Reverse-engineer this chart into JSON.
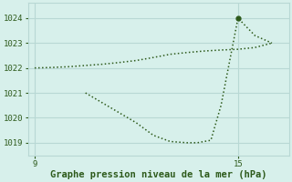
{
  "line1_x": [
    9.0,
    9.5,
    10.0,
    10.5,
    11.0,
    11.5,
    12.0,
    12.5,
    13.0,
    13.5,
    14.0,
    14.5,
    15.0,
    15.5,
    16.0
  ],
  "line1_y": [
    1022.0,
    1022.02,
    1022.05,
    1022.1,
    1022.15,
    1022.22,
    1022.3,
    1022.42,
    1022.55,
    1022.62,
    1022.68,
    1022.72,
    1022.75,
    1022.82,
    1023.0
  ],
  "line2_x": [
    10.5,
    11.0,
    11.5,
    12.0,
    12.5,
    13.0,
    13.5,
    13.8,
    14.0,
    14.2,
    14.5,
    15.0,
    15.5,
    16.0
  ],
  "line2_y": [
    1021.0,
    1020.6,
    1020.2,
    1019.8,
    1019.3,
    1019.05,
    1019.0,
    1019.0,
    1019.05,
    1019.1,
    1020.5,
    1024.0,
    1023.3,
    1023.0
  ],
  "marker_x": 15.0,
  "marker_y": 1024.0,
  "line_color": "#2d5a1b",
  "bg_color": "#d7f0eb",
  "grid_color": "#b8d8d4",
  "xlabel": "Graphe pression niveau de la mer (hPa)",
  "xlabel_color": "#2d5a1b",
  "xticks": [
    9,
    15
  ],
  "yticks": [
    1019,
    1020,
    1021,
    1022,
    1023,
    1024
  ],
  "xlim": [
    8.8,
    16.5
  ],
  "ylim": [
    1018.5,
    1024.6
  ],
  "tick_color": "#2d5a1b",
  "tick_fontsize": 6.5,
  "xlabel_fontsize": 7.5
}
